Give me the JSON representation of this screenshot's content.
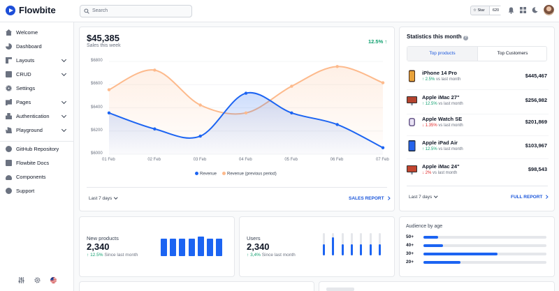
{
  "brand": {
    "name": "Flowbite"
  },
  "search": {
    "placeholder": "Search"
  },
  "github": {
    "star_label": "Star",
    "star_count": "620"
  },
  "sidebar": {
    "items": [
      {
        "label": "Welcome",
        "icon": "home-icon",
        "chevron": false
      },
      {
        "label": "Dashboard",
        "icon": "pie-chart-icon",
        "chevron": false
      },
      {
        "label": "Layouts",
        "icon": "layout-icon",
        "chevron": true
      },
      {
        "label": "CRUD",
        "icon": "document-icon",
        "chevron": true
      },
      {
        "label": "Settings",
        "icon": "gear-icon",
        "chevron": false
      },
      {
        "label": "Pages",
        "icon": "pages-icon",
        "chevron": true
      },
      {
        "label": "Authentication",
        "icon": "lock-icon",
        "chevron": true
      },
      {
        "label": "Playground",
        "icon": "hand-pointer-icon",
        "chevron": true
      }
    ],
    "secondary": [
      {
        "label": "GitHub Repository",
        "icon": "github-icon"
      },
      {
        "label": "Flowbite Docs",
        "icon": "book-icon"
      },
      {
        "label": "Components",
        "icon": "cloud-icon"
      },
      {
        "label": "Support",
        "icon": "lifebuoy-icon"
      }
    ]
  },
  "sales": {
    "value": "$45,385",
    "subtitle": "Sales this week",
    "change": "12.5%",
    "legend": [
      "Revenue",
      "Revenue (previous period)"
    ],
    "period_dropdown": "Last 7 days",
    "report_link": "SALES REPORT"
  },
  "chart_data": {
    "type": "area",
    "x": [
      "01 Feb",
      "02 Feb",
      "03 Feb",
      "04 Feb",
      "05 Feb",
      "06 Feb",
      "07 Feb"
    ],
    "y_ticks": [
      "$6800",
      "$6600",
      "$6400",
      "$6200",
      "$6000"
    ],
    "ylim": [
      6000,
      6800
    ],
    "grid": true,
    "legend_position": "bottom",
    "series": [
      {
        "name": "Revenue",
        "color": "#1c64f2",
        "values": [
          6356,
          6218,
          6156,
          6526,
          6356,
          6256,
          6056
        ]
      },
      {
        "name": "Revenue (previous period)",
        "color": "#fdba8c",
        "values": [
          6556,
          6725,
          6424,
          6356,
          6586,
          6756,
          6616
        ]
      }
    ]
  },
  "stats": {
    "title": "Statistics this month",
    "tabs": [
      "Top products",
      "Top Customers"
    ],
    "products": [
      {
        "name": "iPhone 14 Pro",
        "change": "2.5%",
        "dir": "up",
        "suffix": "vs last month",
        "value": "$445,467"
      },
      {
        "name": "Apple iMac 27\"",
        "change": "12.5%",
        "dir": "up",
        "suffix": "vs last month",
        "value": "$256,982"
      },
      {
        "name": "Apple Watch SE",
        "change": "1.35%",
        "dir": "down",
        "suffix": "vs last month",
        "value": "$201,869"
      },
      {
        "name": "Apple iPad Air",
        "change": "12.5%",
        "dir": "up",
        "suffix": "vs last month",
        "value": "$103,967"
      },
      {
        "name": "Apple iMac 24\"",
        "change": "2%",
        "dir": "down",
        "suffix": "vs last month",
        "value": "$98,543"
      }
    ],
    "period_dropdown": "Last 7 days",
    "report_link": "FULL REPORT"
  },
  "new_products": {
    "title": "New products",
    "value": "2,340",
    "change": "12.5%",
    "suffix": "Since last month",
    "bars": [
      0.75,
      0.75,
      0.75,
      0.75,
      0.82,
      0.75,
      0.75
    ]
  },
  "users": {
    "title": "Users",
    "value": "2,340",
    "change": "3,4%",
    "suffix": "Since last month",
    "bars": [
      0.5,
      0.82,
      0.5,
      0.5,
      0.5,
      0.5,
      0.5
    ]
  },
  "audience": {
    "title": "Audience by age",
    "rows": [
      {
        "label": "50+",
        "fraction": 0.12
      },
      {
        "label": "40+",
        "fraction": 0.16
      },
      {
        "label": "30+",
        "fraction": 0.6
      },
      {
        "label": "20+",
        "fraction": 0.3
      }
    ]
  }
}
